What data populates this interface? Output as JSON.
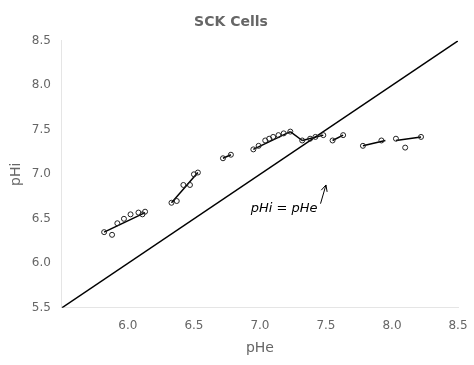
{
  "chart_data": {
    "type": "scatter",
    "title": "SCK Cells",
    "xlabel": "pHe",
    "ylabel": "pHi",
    "xlim": [
      5.5,
      8.5
    ],
    "ylim": [
      5.5,
      8.5
    ],
    "xticks": [
      {
        "value": 6.0,
        "label": "6.0"
      },
      {
        "value": 6.5,
        "label": "6.5"
      },
      {
        "value": 7.0,
        "label": "7.0"
      },
      {
        "value": 7.5,
        "label": "7.5"
      },
      {
        "value": 8.0,
        "label": "8.0"
      },
      {
        "value": 8.5,
        "label": "8.5"
      }
    ],
    "yticks": [
      {
        "value": 5.5,
        "label": "5.5"
      },
      {
        "value": 6.0,
        "label": "6.0"
      },
      {
        "value": 6.5,
        "label": "6.5"
      },
      {
        "value": 7.0,
        "label": "7.0"
      },
      {
        "value": 7.5,
        "label": "7.5"
      },
      {
        "value": 8.0,
        "label": "8.0"
      },
      {
        "value": 8.5,
        "label": "8.5"
      }
    ],
    "grid": false,
    "series": [
      {
        "type": "line",
        "color": "#000000",
        "x": [
          5.5,
          8.5
        ],
        "values": [
          5.5,
          8.5
        ]
      },
      {
        "type": "line",
        "color": "#000000",
        "segments": [
          [
            [
              5.82,
              6.13
            ],
            [
              6.35,
              6.57
            ]
          ],
          [
            [
              6.33,
              6.53
            ],
            [
              6.68,
              7.02
            ]
          ],
          [
            [
              6.72,
              6.78
            ],
            [
              7.18,
              7.22
            ]
          ],
          [
            [
              6.95,
              7.23
            ],
            [
              7.28,
              7.48
            ]
          ],
          [
            [
              7.32,
              7.48
            ],
            [
              7.38,
              7.44
            ]
          ],
          [
            [
              7.55,
              7.63
            ],
            [
              7.38,
              7.44
            ]
          ],
          [
            [
              7.78,
              7.95
            ],
            [
              7.32,
              7.38
            ]
          ],
          [
            [
              8.03,
              8.22
            ],
            [
              7.38,
              7.42
            ]
          ],
          [
            [
              7.23,
              7.32
            ],
            [
              7.48,
              7.38
            ]
          ]
        ]
      },
      {
        "type": "scatter",
        "color": "#222222",
        "marker": "open_circle",
        "x": [
          5.82,
          5.88,
          5.92,
          5.97,
          6.02,
          6.08,
          6.11,
          6.13,
          6.33,
          6.37,
          6.42,
          6.47,
          6.5,
          6.53,
          6.72,
          6.78,
          6.95,
          6.99,
          7.04,
          7.07,
          7.1,
          7.14,
          7.18,
          7.23,
          7.32,
          7.38,
          7.42,
          7.48,
          7.55,
          7.63,
          7.78,
          7.92,
          8.03,
          8.1,
          8.22
        ],
        "values": [
          6.35,
          6.32,
          6.45,
          6.5,
          6.55,
          6.57,
          6.55,
          6.58,
          6.68,
          6.7,
          6.88,
          6.88,
          7.0,
          7.02,
          7.18,
          7.22,
          7.28,
          7.32,
          7.38,
          7.4,
          7.42,
          7.44,
          7.46,
          7.48,
          7.38,
          7.4,
          7.42,
          7.44,
          7.38,
          7.44,
          7.32,
          7.38,
          7.4,
          7.3,
          7.42
        ]
      }
    ],
    "annotations": [
      {
        "text": "pHi = pHe",
        "xy": [
          7.5,
          6.88
        ],
        "xytext": [
          6.93,
          6.58
        ]
      }
    ]
  }
}
